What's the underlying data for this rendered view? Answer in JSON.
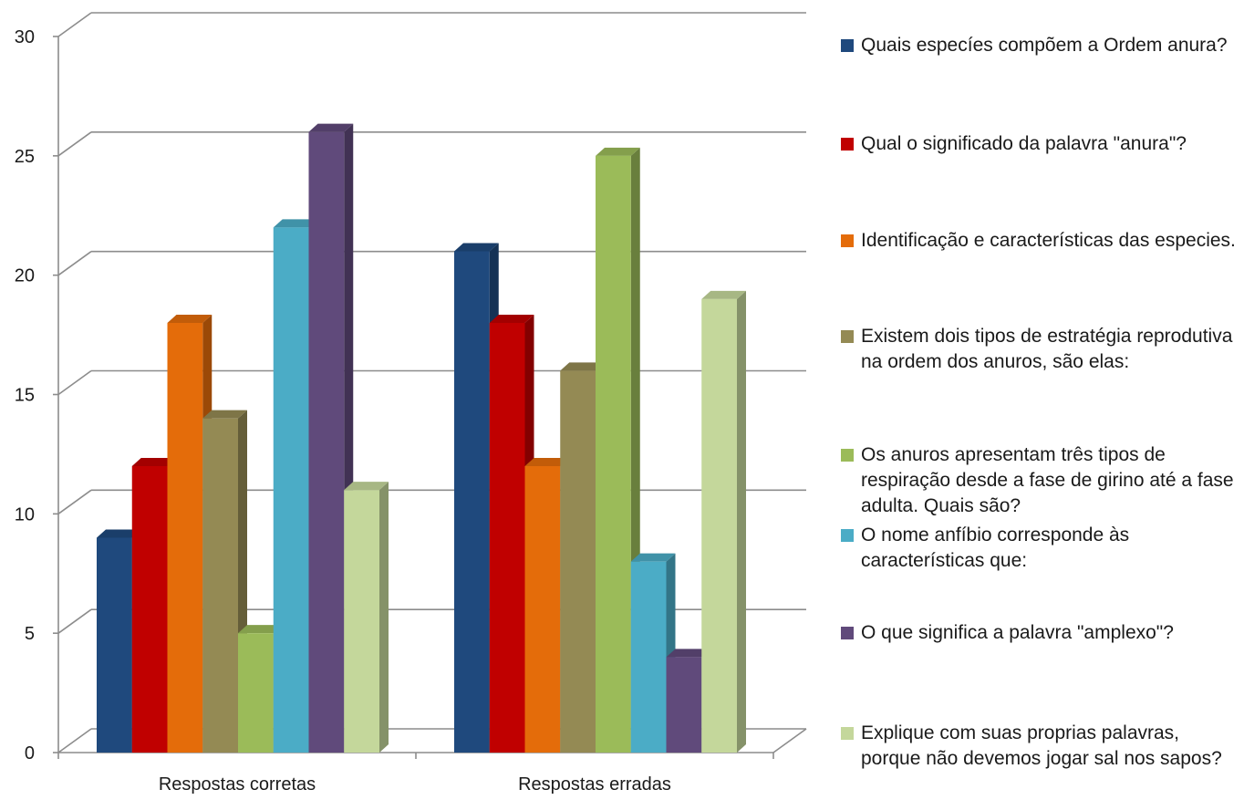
{
  "chart_data": {
    "type": "bar",
    "title": "",
    "xlabel": "",
    "ylabel": "",
    "ylim": [
      0,
      30
    ],
    "yticks": [
      0,
      5,
      10,
      15,
      20,
      25,
      30
    ],
    "grid": true,
    "legend_position": "right",
    "categories": [
      "Respostas corretas",
      "Respostas erradas"
    ],
    "series": [
      {
        "name": "Quais especíes compõem a Ordem anura?",
        "color": "#1f497d",
        "values": [
          9,
          21
        ]
      },
      {
        "name": "Qual o significado da palavra \"anura\"?",
        "color": "#c00000",
        "values": [
          12,
          18
        ]
      },
      {
        "name": "Identificação e características das especies.",
        "color": "#e46c0a",
        "values": [
          18,
          12
        ]
      },
      {
        "name": "Existem dois tipos de estratégia reprodutiva na ordem dos anuros, são elas:",
        "color": "#948a54",
        "values": [
          14,
          16
        ]
      },
      {
        "name": "Os anuros apresentam três tipos de respiração desde a fase de girino até a fase adulta. Quais são?",
        "color": "#9bbb59",
        "values": [
          5,
          25
        ]
      },
      {
        "name": "O nome anfíbio corresponde às características que:",
        "color": "#4bacc6",
        "values": [
          22,
          8
        ]
      },
      {
        "name": "O que significa a palavra \"amplexo\"?",
        "color": "#604a7b",
        "values": [
          26,
          4
        ]
      },
      {
        "name": "Explique com suas proprias palavras, porque não devemos jogar sal nos sapos?",
        "color": "#c4d79b",
        "values": [
          11,
          19
        ]
      }
    ]
  }
}
